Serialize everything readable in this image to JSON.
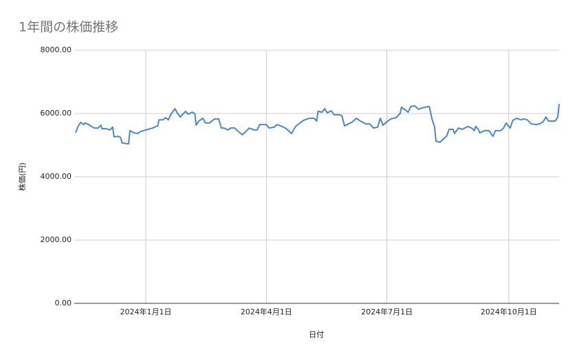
{
  "chart_data": {
    "type": "line",
    "title": "1年間の株価推移",
    "x_label": "日付",
    "y_label": "株価(円)",
    "color": "#4a86c8",
    "grid": true,
    "xlim": [
      "2023-11-08",
      "2024-11-08"
    ],
    "xticks": [
      {
        "value": "2024-01-01",
        "label": "2024年1月1日"
      },
      {
        "value": "2024-04-01",
        "label": "2024年4月1日"
      },
      {
        "value": "2024-07-01",
        "label": "2024年7月1日"
      },
      {
        "value": "2024-10-01",
        "label": "2024年10月1日"
      }
    ],
    "ylim": [
      0,
      8000
    ],
    "yticks": [
      {
        "value": 0,
        "label": "0.00"
      },
      {
        "value": 2000,
        "label": "2000.00"
      },
      {
        "value": 4000,
        "label": "4000.00"
      },
      {
        "value": 6000,
        "label": "6000.00"
      },
      {
        "value": 8000,
        "label": "8000.00"
      }
    ],
    "x": [
      "2023-11-09",
      "2023-11-11",
      "2023-11-13",
      "2023-11-15",
      "2023-11-16",
      "2023-11-19",
      "2023-11-21",
      "2023-11-23",
      "2023-11-26",
      "2023-11-28",
      "2023-11-29",
      "2023-12-02",
      "2023-12-05",
      "2023-12-07",
      "2023-12-08",
      "2023-12-11",
      "2023-12-13",
      "2023-12-14",
      "2023-12-19",
      "2023-12-20",
      "2023-12-23",
      "2023-12-26",
      "2023-12-28",
      "2024-01-01",
      "2024-01-06",
      "2024-01-10",
      "2024-01-11",
      "2024-01-14",
      "2024-01-16",
      "2024-01-18",
      "2024-01-20",
      "2024-01-23",
      "2024-01-25",
      "2024-01-27",
      "2024-01-29",
      "2024-01-31",
      "2024-02-02",
      "2024-02-05",
      "2024-02-07",
      "2024-02-08",
      "2024-02-10",
      "2024-02-13",
      "2024-02-15",
      "2024-02-18",
      "2024-02-22",
      "2024-02-25",
      "2024-02-27",
      "2024-02-29",
      "2024-03-03",
      "2024-03-05",
      "2024-03-08",
      "2024-03-12",
      "2024-03-14",
      "2024-03-16",
      "2024-03-19",
      "2024-03-23",
      "2024-03-25",
      "2024-03-27",
      "2024-04-01",
      "2024-04-03",
      "2024-04-07",
      "2024-04-09",
      "2024-04-13",
      "2024-04-16",
      "2024-04-20",
      "2024-04-23",
      "2024-04-27",
      "2024-04-29",
      "2024-05-02",
      "2024-05-04",
      "2024-05-07",
      "2024-05-09",
      "2024-05-10",
      "2024-05-13",
      "2024-05-15",
      "2024-05-17",
      "2024-05-20",
      "2024-05-22",
      "2024-05-26",
      "2024-05-28",
      "2024-05-30",
      "2024-06-02",
      "2024-06-05",
      "2024-06-08",
      "2024-06-11",
      "2024-06-15",
      "2024-06-18",
      "2024-06-21",
      "2024-06-24",
      "2024-06-26",
      "2024-06-28",
      "2024-07-01",
      "2024-07-04",
      "2024-07-08",
      "2024-07-11",
      "2024-07-12",
      "2024-07-15",
      "2024-07-17",
      "2024-07-19",
      "2024-07-22",
      "2024-07-25",
      "2024-07-27",
      "2024-07-30",
      "2024-08-02",
      "2024-08-04",
      "2024-08-06",
      "2024-08-07",
      "2024-08-10",
      "2024-08-12",
      "2024-08-15",
      "2024-08-17",
      "2024-08-20",
      "2024-08-21",
      "2024-08-24",
      "2024-08-27",
      "2024-08-31",
      "2024-09-03",
      "2024-09-05",
      "2024-09-06",
      "2024-09-08",
      "2024-09-09",
      "2024-09-13",
      "2024-09-16",
      "2024-09-19",
      "2024-09-21",
      "2024-09-25",
      "2024-09-27",
      "2024-09-29",
      "2024-10-02",
      "2024-10-04",
      "2024-10-07",
      "2024-10-10",
      "2024-10-12",
      "2024-10-15",
      "2024-10-18",
      "2024-10-22",
      "2024-10-24",
      "2024-10-27",
      "2024-10-29",
      "2024-10-31",
      "2024-11-05",
      "2024-11-07",
      "2024-11-08"
    ],
    "values": [
      5390,
      5610,
      5720,
      5650,
      5700,
      5650,
      5590,
      5540,
      5540,
      5630,
      5520,
      5520,
      5480,
      5570,
      5260,
      5280,
      5240,
      5070,
      5040,
      5460,
      5390,
      5370,
      5430,
      5480,
      5540,
      5610,
      5800,
      5800,
      5870,
      5800,
      5980,
      6150,
      6000,
      5890,
      5980,
      6070,
      5980,
      6040,
      6000,
      5630,
      5760,
      5850,
      5700,
      5700,
      5830,
      5830,
      5540,
      5540,
      5480,
      5540,
      5540,
      5390,
      5330,
      5410,
      5540,
      5480,
      5480,
      5650,
      5650,
      5540,
      5570,
      5650,
      5590,
      5520,
      5370,
      5590,
      5720,
      5780,
      5830,
      5850,
      5850,
      5760,
      6070,
      6040,
      6150,
      6020,
      6090,
      5960,
      5960,
      5930,
      5610,
      5670,
      5740,
      5850,
      5760,
      5670,
      5670,
      5540,
      5570,
      5850,
      5630,
      5740,
      5830,
      5870,
      6000,
      6200,
      6110,
      6040,
      6220,
      6240,
      6130,
      6170,
      6200,
      6220,
      5830,
      5570,
      5130,
      5090,
      5170,
      5280,
      5500,
      5500,
      5370,
      5540,
      5500,
      5590,
      5540,
      5460,
      5590,
      5500,
      5390,
      5460,
      5460,
      5280,
      5460,
      5460,
      5540,
      5700,
      5540,
      5780,
      5850,
      5800,
      5830,
      5800,
      5670,
      5650,
      5670,
      5740,
      5890,
      5760,
      5760,
      5890,
      6300
    ]
  }
}
